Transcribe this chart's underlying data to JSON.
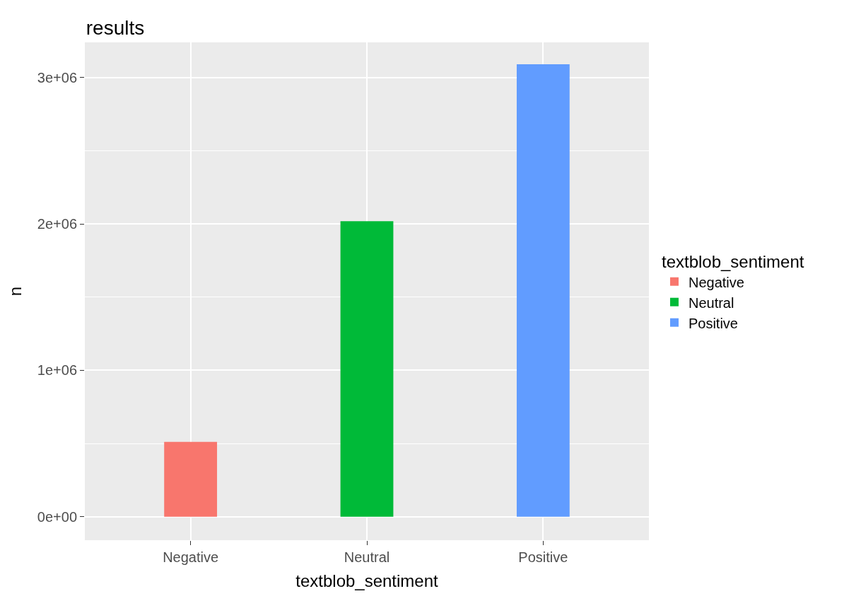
{
  "chart_data": {
    "type": "bar",
    "title": "results",
    "xlabel": "textblob_sentiment",
    "ylabel": "n",
    "legend_title": "textblob_sentiment",
    "categories": [
      "Negative",
      "Neutral",
      "Positive"
    ],
    "series": [
      {
        "name": "Negative",
        "color": "#f8766d",
        "values": [
          512000,
          null,
          null
        ]
      },
      {
        "name": "Neutral",
        "color": "#00ba38",
        "values": [
          null,
          2019000,
          null
        ]
      },
      {
        "name": "Positive",
        "color": "#619cff",
        "values": [
          null,
          null,
          3090000
        ]
      }
    ],
    "ylim": [
      -160000,
      3240000
    ],
    "yticks": [
      {
        "value": 0,
        "label": "0e+00"
      },
      {
        "value": 1000000,
        "label": "1e+06"
      },
      {
        "value": 2000000,
        "label": "2e+06"
      },
      {
        "value": 3000000,
        "label": "3e+06"
      }
    ],
    "grid": true,
    "legend": "right"
  }
}
